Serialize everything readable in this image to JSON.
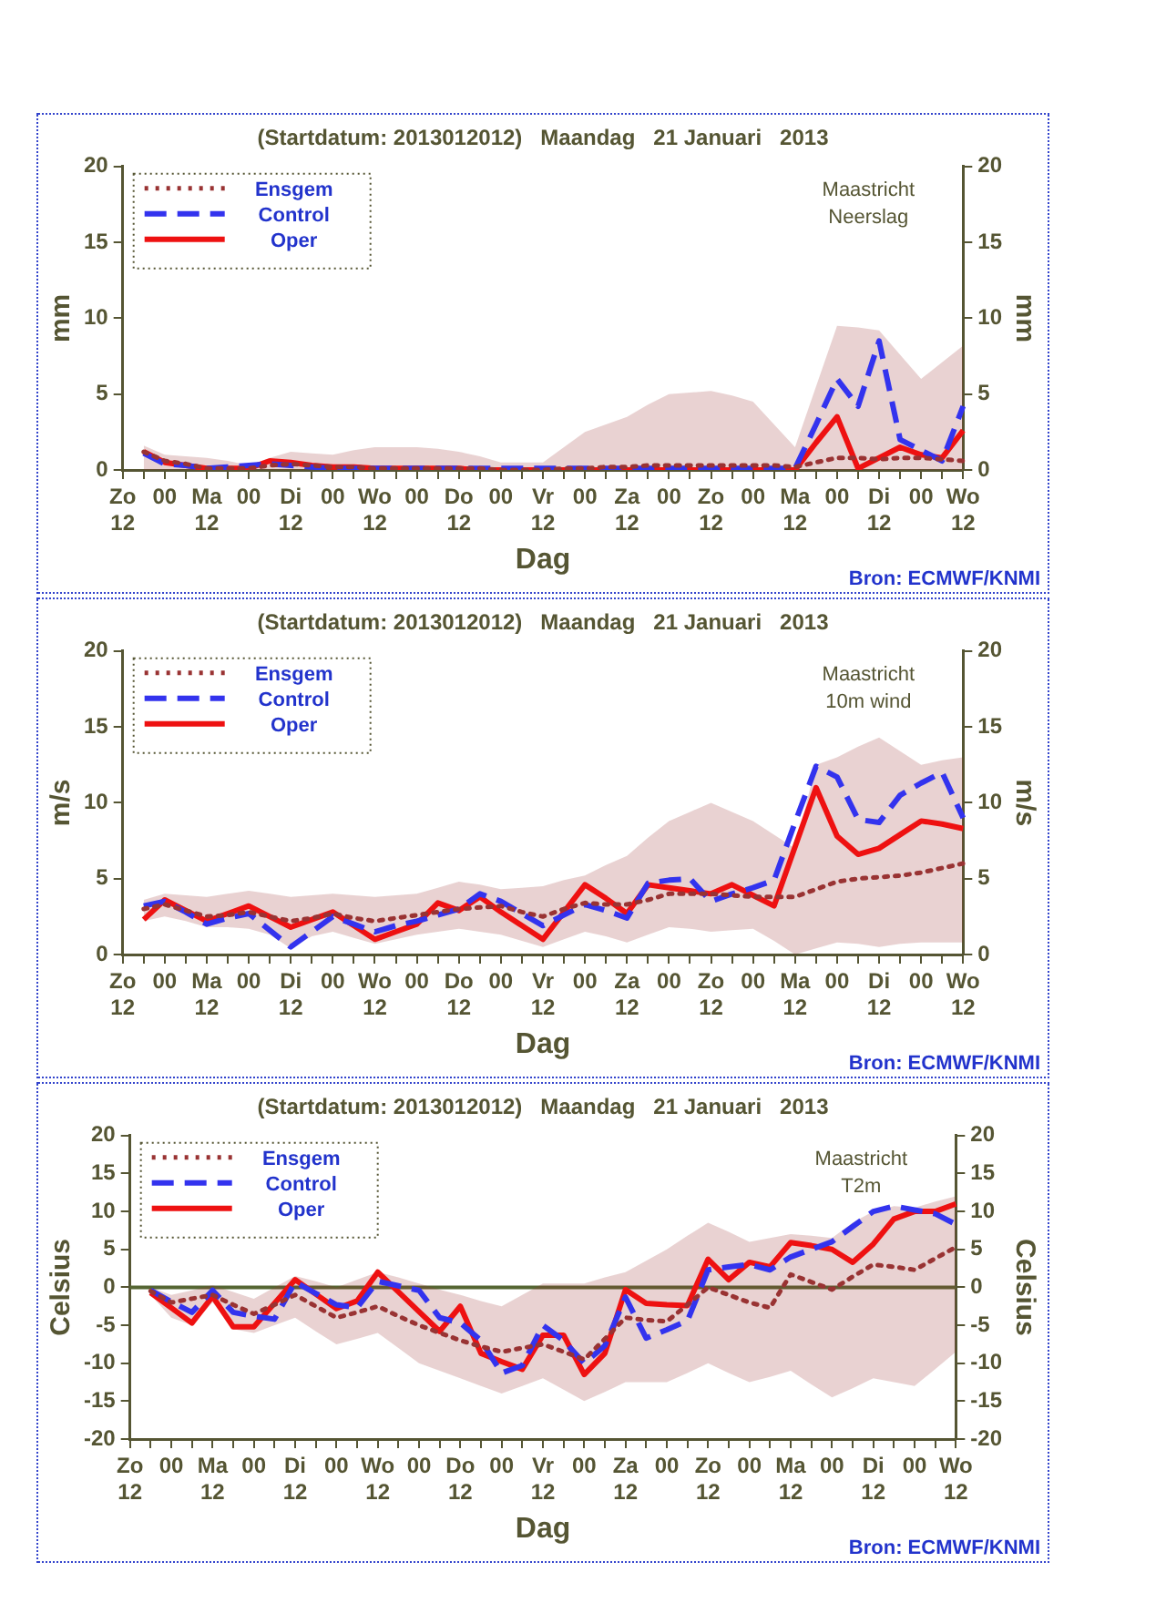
{
  "chart_data": [
    {
      "type": "line",
      "title": "(Startdatum: 2013012012)   Maandag   21 Januari   2013",
      "xlabel": "Dag",
      "ylabel": "mm",
      "y2label": "mm",
      "legend": "top left",
      "marker": "none",
      "annotations": [
        "Maastricht",
        "Neerslag",
        "Bron: ECMWF/KNMI"
      ],
      "categories": [
        "Zo\n12",
        null,
        "00",
        null,
        "Ma\n12",
        null,
        "00",
        null,
        "Di\n12",
        null,
        "00",
        null,
        "Wo\n12",
        null,
        "00",
        null,
        "Do\n12",
        null,
        "00",
        null,
        "Vr\n12",
        null,
        "00",
        null,
        "Za\n12",
        null,
        "00",
        null,
        "Zo\n12",
        null,
        "00",
        null,
        "Ma\n12",
        null,
        "00",
        null,
        "Di\n12",
        null,
        "00",
        null,
        "Wo\n12"
      ],
      "ylim": [
        0,
        20
      ],
      "yticks": [
        0,
        5,
        10,
        15,
        20
      ],
      "y2lim": [
        0,
        20
      ],
      "y2ticks": [
        0,
        5,
        10,
        15,
        20
      ],
      "series": [
        {
          "name": "Ensgem",
          "color": "#993333",
          "line_style": "dotted",
          "values": [
            null,
            1.2,
            0.6,
            0.4,
            0.1,
            0.1,
            0.1,
            0.3,
            0.4,
            0.3,
            0.2,
            0.2,
            0.1,
            0.1,
            0.1,
            0.1,
            0.1,
            0.1,
            0,
            0,
            0,
            0.1,
            0.1,
            0.2,
            0.2,
            0.3,
            0.3,
            0.3,
            0.3,
            0.3,
            0.3,
            0.3,
            0.2,
            0.5,
            0.8,
            0.8,
            0.7,
            0.8,
            0.8,
            0.7,
            0.6
          ],
          "lower": [
            null,
            0,
            0,
            0,
            0,
            0,
            0,
            0,
            0,
            0,
            0,
            0,
            0,
            0,
            0,
            0,
            0,
            0,
            0,
            0,
            0,
            0,
            0,
            0,
            0,
            0,
            0,
            0,
            0,
            0,
            0,
            0,
            0,
            0,
            0,
            0,
            0,
            0,
            0,
            0,
            0
          ],
          "upper": [
            null,
            1.6,
            1.0,
            0.9,
            0.8,
            0.6,
            0.3,
            0.8,
            1.2,
            1.1,
            1.0,
            1.3,
            1.5,
            1.5,
            1.5,
            1.4,
            1.2,
            0.9,
            0.5,
            0.5,
            0.5,
            1.5,
            2.5,
            3.0,
            3.5,
            4.3,
            5.0,
            5.1,
            5.2,
            4.9,
            4.5,
            3.0,
            1.5,
            5.5,
            9.5,
            9.4,
            9.2,
            7.6,
            6.0,
            7.1,
            8.2
          ]
        },
        {
          "name": "Control",
          "color": "#3333ee",
          "line_style": "dashed",
          "values": [
            null,
            1.1,
            0.4,
            0.3,
            0.1,
            0.2,
            0.3,
            0.4,
            0.3,
            0.2,
            0.1,
            0.1,
            0.1,
            0.1,
            0.1,
            0.1,
            0.1,
            0.1,
            0.1,
            0.1,
            0.1,
            0.1,
            0.1,
            0.1,
            0.1,
            0.1,
            0.1,
            0.1,
            0.1,
            0.1,
            0.1,
            0.1,
            0.1,
            3.0,
            6.0,
            4.2,
            8.5,
            2.0,
            1.3,
            0.6,
            4.2
          ]
        },
        {
          "name": "Oper",
          "color": "#ee1111",
          "line_style": "solid",
          "values": [
            null,
            1.2,
            0.5,
            0.3,
            0.1,
            0.1,
            0.1,
            0.6,
            0.5,
            0.3,
            0.2,
            0.2,
            0.1,
            0.1,
            0.1,
            0.1,
            0.1,
            0,
            0,
            0,
            0,
            0,
            0,
            0,
            0,
            0,
            0,
            0,
            0,
            0,
            0,
            0,
            0,
            1.8,
            3.5,
            0.1,
            0.8,
            1.5,
            1.0,
            0.8,
            2.6
          ]
        }
      ]
    },
    {
      "type": "line",
      "title": "(Startdatum: 2013012012)   Maandag   21 Januari   2013",
      "xlabel": "Dag",
      "ylabel": "m/s",
      "y2label": "m/s",
      "legend": "top left",
      "marker": "none",
      "annotations": [
        "Maastricht",
        "10m wind",
        "Bron: ECMWF/KNMI"
      ],
      "categories": [
        "Zo\n12",
        null,
        "00",
        null,
        "Ma\n12",
        null,
        "00",
        null,
        "Di\n12",
        null,
        "00",
        null,
        "Wo\n12",
        null,
        "00",
        null,
        "Do\n12",
        null,
        "00",
        null,
        "Vr\n12",
        null,
        "00",
        null,
        "Za\n12",
        null,
        "00",
        null,
        "Zo\n12",
        null,
        "00",
        null,
        "Ma\n12",
        null,
        "00",
        null,
        "Di\n12",
        null,
        "00",
        null,
        "Wo\n12"
      ],
      "ylim": [
        0,
        20
      ],
      "yticks": [
        0,
        5,
        10,
        15,
        20
      ],
      "y2lim": [
        0,
        20
      ],
      "y2ticks": [
        0,
        5,
        10,
        15,
        20
      ],
      "series": [
        {
          "name": "Ensgem",
          "color": "#993333",
          "line_style": "dotted",
          "values": [
            null,
            3.0,
            3.3,
            2.9,
            2.5,
            2.6,
            2.8,
            2.5,
            2.2,
            2.4,
            2.7,
            2.4,
            2.2,
            2.4,
            2.6,
            2.8,
            3.0,
            3.1,
            3.2,
            2.8,
            2.5,
            3.0,
            3.4,
            3.3,
            3.3,
            3.6,
            4.0,
            4.0,
            4.0,
            3.9,
            3.8,
            3.8,
            3.8,
            4.3,
            4.8,
            5.0,
            5.1,
            5.2,
            5.4,
            5.7,
            6.0
          ],
          "lower": [
            null,
            2.2,
            2.5,
            2.2,
            1.8,
            1.8,
            1.7,
            1.3,
            0.4,
            1.2,
            1.5,
            1.1,
            0.7,
            1.0,
            1.3,
            1.5,
            1.7,
            1.5,
            1.3,
            0.9,
            0.5,
            1.0,
            1.5,
            1.2,
            0.8,
            1.3,
            1.8,
            1.7,
            1.5,
            1.6,
            1.7,
            0.9,
            0.0,
            0.4,
            0.8,
            0.7,
            0.5,
            0.7,
            0.8,
            0.8,
            0.8
          ],
          "upper": [
            null,
            3.6,
            4.0,
            3.9,
            3.8,
            4.0,
            4.2,
            4.0,
            3.8,
            3.9,
            4.0,
            3.9,
            3.8,
            3.9,
            4.0,
            4.4,
            4.8,
            4.6,
            4.3,
            4.4,
            4.5,
            4.9,
            5.2,
            5.9,
            6.5,
            7.7,
            8.8,
            9.4,
            10.0,
            9.4,
            8.8,
            7.9,
            7.0,
            12.5,
            13.0,
            13.7,
            14.3,
            13.4,
            12.5,
            12.8,
            13.0
          ]
        },
        {
          "name": "Control",
          "color": "#3333ee",
          "line_style": "dashed",
          "values": [
            null,
            3.2,
            3.5,
            2.8,
            2.0,
            2.4,
            2.7,
            1.6,
            0.5,
            1.5,
            2.5,
            2.0,
            1.5,
            1.9,
            2.2,
            2.6,
            3.0,
            4.0,
            3.5,
            2.7,
            1.9,
            2.6,
            3.3,
            2.9,
            2.4,
            4.7,
            4.9,
            5.0,
            3.5,
            4.0,
            4.4,
            4.9,
            8.7,
            12.4,
            11.7,
            8.9,
            8.7,
            10.5,
            11.3,
            12.0,
            9.0
          ]
        },
        {
          "name": "Oper",
          "color": "#ee1111",
          "line_style": "solid",
          "values": [
            null,
            2.3,
            3.6,
            2.9,
            2.2,
            2.7,
            3.2,
            2.5,
            1.8,
            2.3,
            2.8,
            1.9,
            1.0,
            1.5,
            2.0,
            3.4,
            2.9,
            3.8,
            2.8,
            1.9,
            1.0,
            2.8,
            4.6,
            3.7,
            2.7,
            4.6,
            4.4,
            4.2,
            4.0,
            4.6,
            3.9,
            3.2,
            7.1,
            11.0,
            7.8,
            6.6,
            7.0,
            7.9,
            8.8,
            8.6,
            8.3
          ]
        }
      ]
    },
    {
      "type": "line",
      "title": "(Startdatum: 2013012012)   Maandag   21 Januari   2013",
      "xlabel": "Dag",
      "ylabel": "Celsius",
      "y2label": "Celsius",
      "legend": "top left",
      "marker": "none",
      "annotations": [
        "Maastricht",
        "T2m",
        "Bron: ECMWF/KNMI"
      ],
      "ref_lines": [
        {
          "axis": "y",
          "value": 0,
          "color": "#556633"
        }
      ],
      "categories": [
        "Zo\n12",
        null,
        "00",
        null,
        "Ma\n12",
        null,
        "00",
        null,
        "Di\n12",
        null,
        "00",
        null,
        "Wo\n12",
        null,
        "00",
        null,
        "Do\n12",
        null,
        "00",
        null,
        "Vr\n12",
        null,
        "00",
        null,
        "Za\n12",
        null,
        "00",
        null,
        "Zo\n12",
        null,
        "00",
        null,
        "Ma\n12",
        null,
        "00",
        null,
        "Di\n12",
        null,
        "00",
        null,
        "Wo\n12"
      ],
      "ylim": [
        -20,
        20
      ],
      "yticks": [
        -20,
        -15,
        -10,
        -5,
        0,
        5,
        10,
        15,
        20
      ],
      "y2lim": [
        -20,
        20
      ],
      "y2ticks": [
        -20,
        -15,
        -10,
        -5,
        0,
        5,
        10,
        15,
        20
      ],
      "series": [
        {
          "name": "Ensgem",
          "color": "#993333",
          "line_style": "dotted",
          "values": [
            null,
            -0.5,
            -2.0,
            -1.5,
            -1.0,
            -2.3,
            -3.5,
            -2.3,
            -1.0,
            -2.5,
            -4.0,
            -3.3,
            -2.5,
            -3.8,
            -5.0,
            -6.0,
            -7.0,
            -7.8,
            -8.5,
            -8.0,
            -7.5,
            -8.5,
            -9.5,
            -6.8,
            -4.0,
            -4.3,
            -4.5,
            -2.3,
            0.0,
            -1.0,
            -2.0,
            -2.7,
            1.7,
            0.7,
            -0.3,
            1.4,
            3.0,
            2.7,
            2.3,
            3.8,
            5.3
          ],
          "lower": [
            null,
            -1.0,
            -4.0,
            -5.0,
            -2.0,
            -5.5,
            -6.0,
            -5.0,
            -4.0,
            -5.8,
            -7.5,
            -6.8,
            -6.0,
            -8.0,
            -10.0,
            -11.0,
            -12.0,
            -13.0,
            -14.0,
            -13.0,
            -12.0,
            -13.5,
            -15.0,
            -13.8,
            -12.5,
            -12.5,
            -12.5,
            -11.3,
            -10.0,
            -11.3,
            -12.5,
            -11.8,
            -11.0,
            -12.8,
            -14.5,
            -13.3,
            -12.0,
            -12.5,
            -13.0,
            -10.8,
            -8.5
          ],
          "upper": [
            null,
            0,
            -1.0,
            -0.4,
            0.3,
            -0.6,
            -1.5,
            0,
            1.5,
            0.8,
            0,
            1.0,
            2.0,
            1.3,
            0.5,
            -0.3,
            -1.0,
            -1.8,
            -2.5,
            -1.0,
            0.5,
            0.5,
            0.5,
            1.3,
            2.0,
            3.5,
            5.0,
            6.8,
            8.5,
            7.3,
            6.0,
            6.5,
            7.0,
            6.8,
            6.5,
            8.5,
            10.0,
            10.7,
            10.5,
            11.3,
            12.0
          ]
        },
        {
          "name": "Control",
          "color": "#3333ee",
          "line_style": "dashed",
          "values": [
            null,
            -0.4,
            -1.9,
            -3.3,
            -0.4,
            -3.3,
            -3.8,
            -4.2,
            0.7,
            -0.8,
            -2.3,
            -2.7,
            0.8,
            0.2,
            -0.4,
            -4.0,
            -4.7,
            -7.0,
            -11.3,
            -10.3,
            -5.0,
            -7.0,
            -10.0,
            -7.7,
            -1.3,
            -6.7,
            -5.6,
            -4.4,
            2.3,
            2.7,
            3.0,
            2.3,
            4.0,
            5.0,
            6.0,
            8.0,
            10.0,
            10.7,
            10.2,
            9.7,
            8.3
          ]
        },
        {
          "name": "Oper",
          "color": "#ee1111",
          "line_style": "solid",
          "values": [
            null,
            -0.7,
            -2.7,
            -4.7,
            -1.2,
            -5.2,
            -5.2,
            -2.1,
            1.0,
            -0.9,
            -2.8,
            -1.8,
            2.0,
            -0.6,
            -3.2,
            -5.8,
            -2.5,
            -8.7,
            -9.8,
            -10.8,
            -6.3,
            -6.3,
            -11.5,
            -8.7,
            -0.3,
            -2.1,
            -2.3,
            -2.4,
            3.7,
            1.0,
            3.3,
            2.7,
            5.9,
            5.5,
            5.0,
            3.3,
            5.7,
            9.0,
            10.0,
            10.0,
            11.0
          ]
        }
      ]
    }
  ]
}
